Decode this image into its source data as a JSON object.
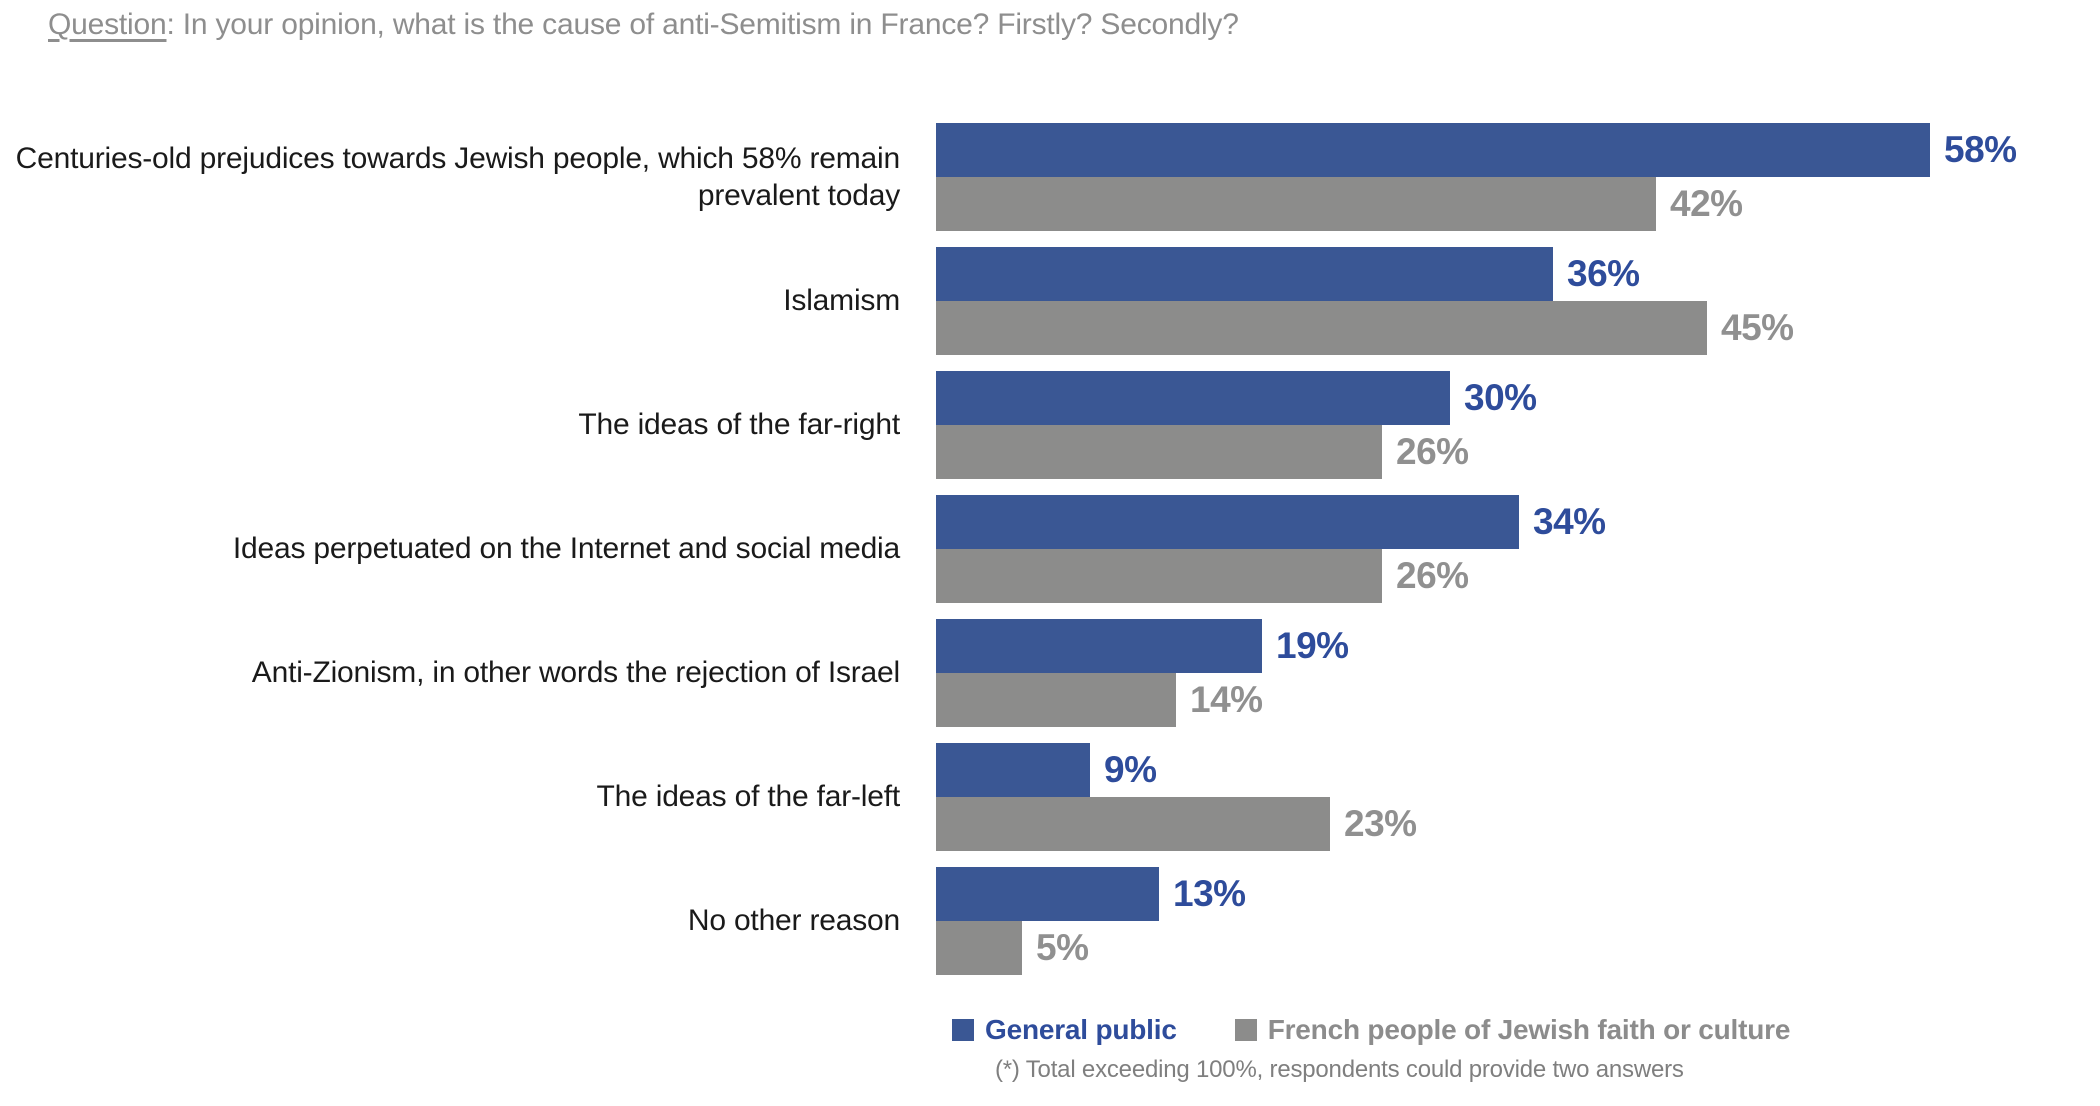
{
  "title": {
    "prefix": "Question",
    "rest": ": In your opinion, what is the cause of anti-Semitism in France? Firstly? Secondly?"
  },
  "chart_data": {
    "type": "bar",
    "orientation": "horizontal",
    "title": "Question: In your opinion, what is the cause of anti-Semitism in France? Firstly? Secondly?",
    "categories": [
      "Centuries-old prejudices towards Jewish people, which 58% remain prevalent today",
      "Islamism",
      "The ideas of the far-right",
      "Ideas perpetuated on the Internet and social media",
      "Anti-Zionism, in other words the rejection of Israel",
      "The ideas of the far-left",
      "No other reason"
    ],
    "series": [
      {
        "name": "General public",
        "values": [
          58,
          36,
          30,
          34,
          19,
          9,
          13
        ],
        "color": "#3A5794",
        "label_color": "#2E4C9B"
      },
      {
        "name": "French people of Jewish faith or culture",
        "values": [
          42,
          45,
          26,
          26,
          14,
          23,
          5
        ],
        "color": "#8C8C8B",
        "label_color": "#909090"
      }
    ],
    "value_suffix": "%",
    "xlim": [
      0,
      68
    ],
    "grid": false,
    "legend_position": "bottom",
    "data_labels": true
  },
  "footnote": "(*) Total exceeding 100%, respondents could provide two answers",
  "colors": {
    "background": "#FFFFFF",
    "title_text": "#8E8E8E",
    "category_text": "#1A1A1A",
    "footnote_text": "#7F7F7F"
  }
}
